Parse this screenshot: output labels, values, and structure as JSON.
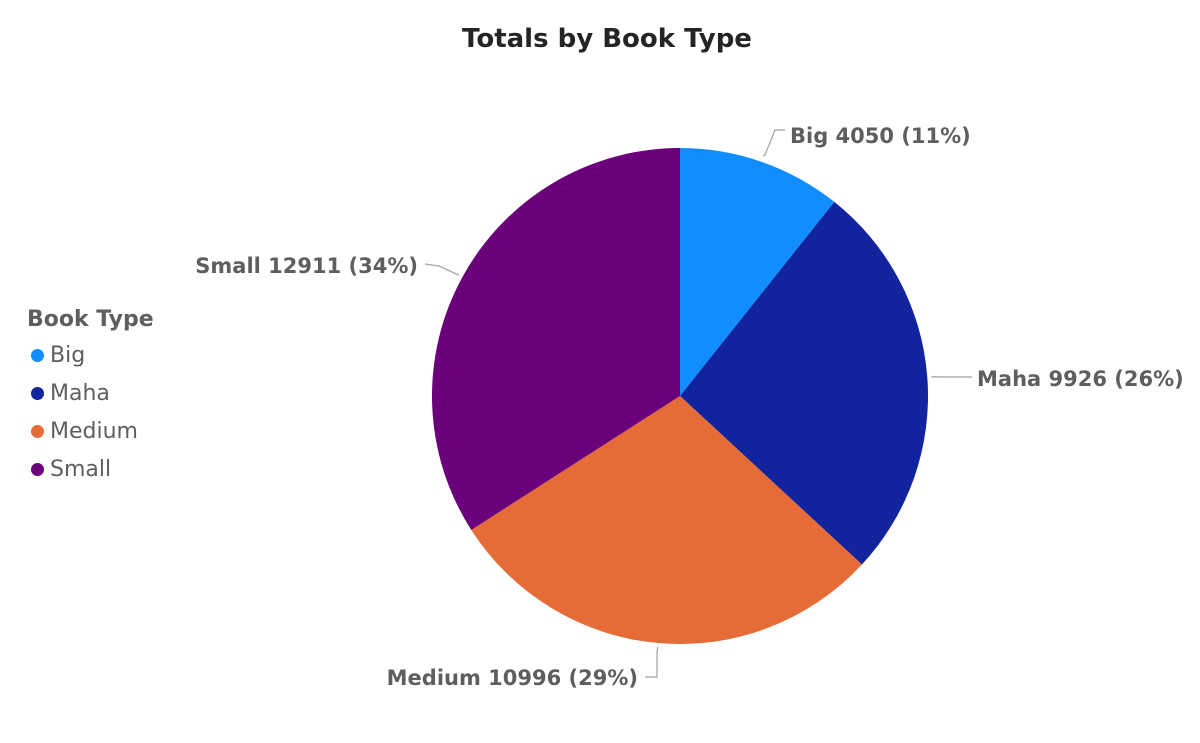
{
  "chart_data": {
    "type": "pie",
    "title": "Totals by Book Type",
    "legend": {
      "title": "Book Type",
      "position": "left"
    },
    "slices": [
      {
        "label": "Big",
        "value": 4050,
        "percent": "11%",
        "color": "#118DFF"
      },
      {
        "label": "Maha",
        "value": 9926,
        "percent": "26%",
        "color": "#12239E"
      },
      {
        "label": "Medium",
        "value": 10996,
        "percent": "29%",
        "color": "#E66C37"
      },
      {
        "label": "Small",
        "value": 12911,
        "percent": "34%",
        "color": "#6B007B"
      }
    ],
    "label_color": "#605e5c"
  }
}
